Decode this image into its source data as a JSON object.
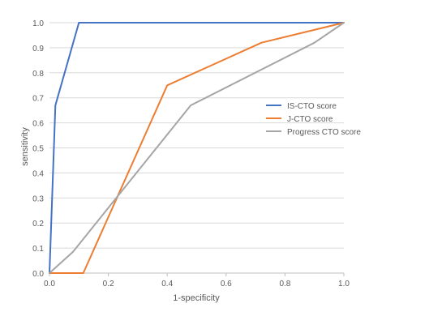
{
  "chart_data": {
    "type": "line",
    "title": "",
    "xlabel": "1-specificity",
    "ylabel": "sensitivity",
    "xlim": [
      0,
      1
    ],
    "ylim": [
      0,
      1
    ],
    "x_ticks": [
      "0.0",
      "0.2",
      "0.4",
      "0.6",
      "0.8",
      "1.0"
    ],
    "y_ticks": [
      "0.0",
      "0.1",
      "0.2",
      "0.3",
      "0.4",
      "0.5",
      "0.6",
      "0.7",
      "0.8",
      "0.9",
      "1.0"
    ],
    "grid": "horizontal",
    "legend_position": "right",
    "series": [
      {
        "name": "IS-CTO score",
        "color": "#4472C4",
        "points": [
          [
            0,
            0
          ],
          [
            0.01,
            0.33
          ],
          [
            0.02,
            0.67
          ],
          [
            0.1,
            1.0
          ],
          [
            1.0,
            1.0
          ]
        ]
      },
      {
        "name": "J-CTO score",
        "color": "#ED7D31",
        "points": [
          [
            0,
            0
          ],
          [
            0.115,
            0
          ],
          [
            0.4,
            0.75
          ],
          [
            0.72,
            0.92
          ],
          [
            1.0,
            1.0
          ]
        ]
      },
      {
        "name": "Progress CTO score",
        "color": "#A5A5A5",
        "points": [
          [
            0,
            0
          ],
          [
            0.08,
            0.085
          ],
          [
            0.48,
            0.67
          ],
          [
            0.9,
            0.92
          ],
          [
            1.0,
            1.0
          ]
        ]
      }
    ]
  }
}
